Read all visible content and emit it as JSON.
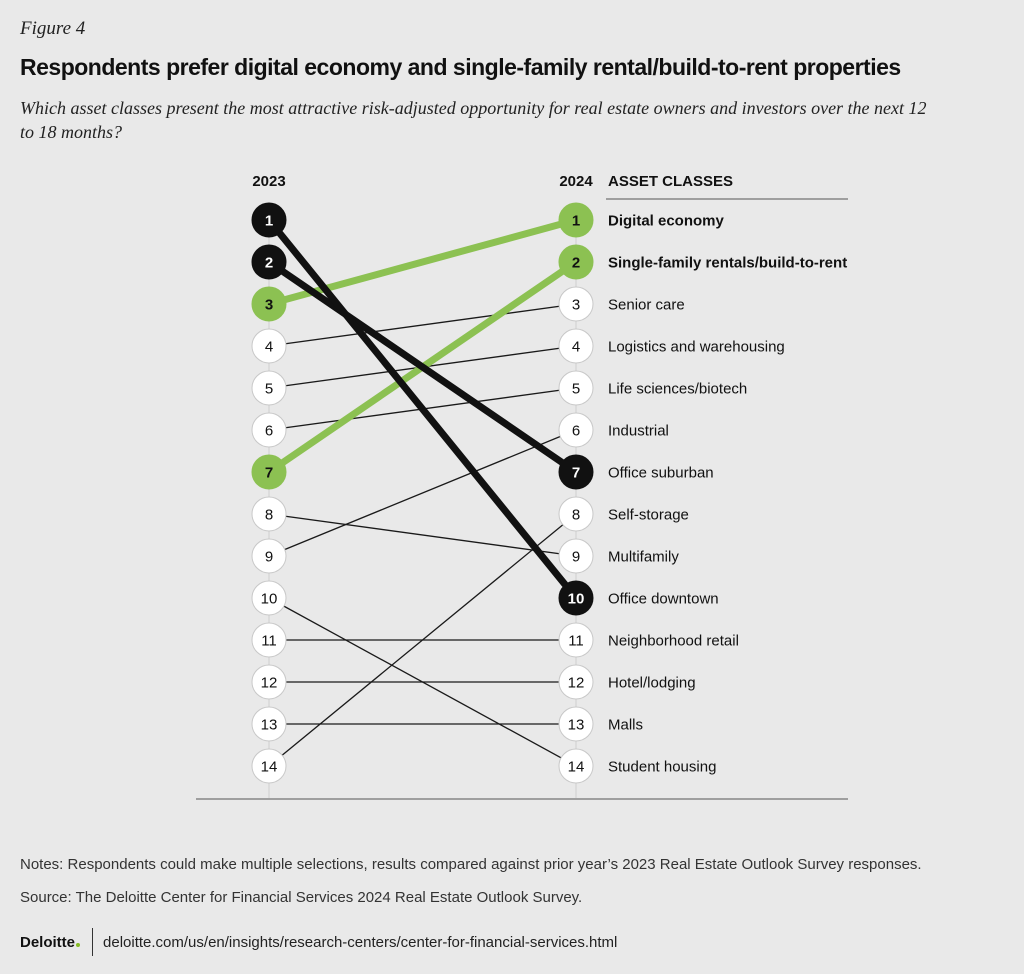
{
  "figure_label": "Figure 4",
  "title": "Respondents prefer digital economy and single-family rental/build-to-rent properties",
  "subtitle": "Which asset classes present the most attractive risk-adjusted opportunity for real estate owners and investors over the next 12 to 18 months?",
  "notes": "Notes: Respondents could make multiple selections, results compared against prior year’s 2023 Real Estate Outlook Survey responses.",
  "source": "Source: The Deloitte Center for Financial Services 2024 Real Estate Outlook Survey.",
  "footer": {
    "brand": "Deloitte",
    "url": "deloitte.com/us/en/insights/research-centers/center-for-financial-services.html"
  },
  "colors": {
    "green": "#8cc152",
    "black": "#111111",
    "thin": "#1a1a1a",
    "circle_fill": "#ffffff",
    "circle_stroke": "#c8c8c8"
  },
  "chart_data": {
    "type": "slope",
    "left_label": "2023",
    "right_label": "2024",
    "header": "ASSET CLASSES",
    "ranks": [
      1,
      2,
      3,
      4,
      5,
      6,
      7,
      8,
      9,
      10,
      11,
      12,
      13,
      14
    ],
    "items": [
      {
        "name": "Digital economy",
        "rank_2023": 3,
        "rank_2024": 1,
        "highlight": "green"
      },
      {
        "name": "Single-family rentals/build-to-rent",
        "rank_2023": 7,
        "rank_2024": 2,
        "highlight": "green"
      },
      {
        "name": "Senior care",
        "rank_2023": 4,
        "rank_2024": 3,
        "highlight": "none"
      },
      {
        "name": "Logistics and warehousing",
        "rank_2023": 5,
        "rank_2024": 4,
        "highlight": "none"
      },
      {
        "name": "Life sciences/biotech",
        "rank_2023": 6,
        "rank_2024": 5,
        "highlight": "none"
      },
      {
        "name": "Industrial",
        "rank_2023": 9,
        "rank_2024": 6,
        "highlight": "none"
      },
      {
        "name": "Office suburban",
        "rank_2023": 2,
        "rank_2024": 7,
        "highlight": "black"
      },
      {
        "name": "Self-storage",
        "rank_2023": 14,
        "rank_2024": 8,
        "highlight": "none"
      },
      {
        "name": "Multifamily",
        "rank_2023": 8,
        "rank_2024": 9,
        "highlight": "none"
      },
      {
        "name": "Office downtown",
        "rank_2023": 1,
        "rank_2024": 10,
        "highlight": "black"
      },
      {
        "name": "Neighborhood retail",
        "rank_2023": 11,
        "rank_2024": 11,
        "highlight": "none"
      },
      {
        "name": "Hotel/lodging",
        "rank_2023": 12,
        "rank_2024": 12,
        "highlight": "none"
      },
      {
        "name": "Malls",
        "rank_2023": 13,
        "rank_2024": 13,
        "highlight": "none"
      },
      {
        "name": "Student housing",
        "rank_2023": 10,
        "rank_2024": 14,
        "highlight": "none"
      }
    ]
  }
}
